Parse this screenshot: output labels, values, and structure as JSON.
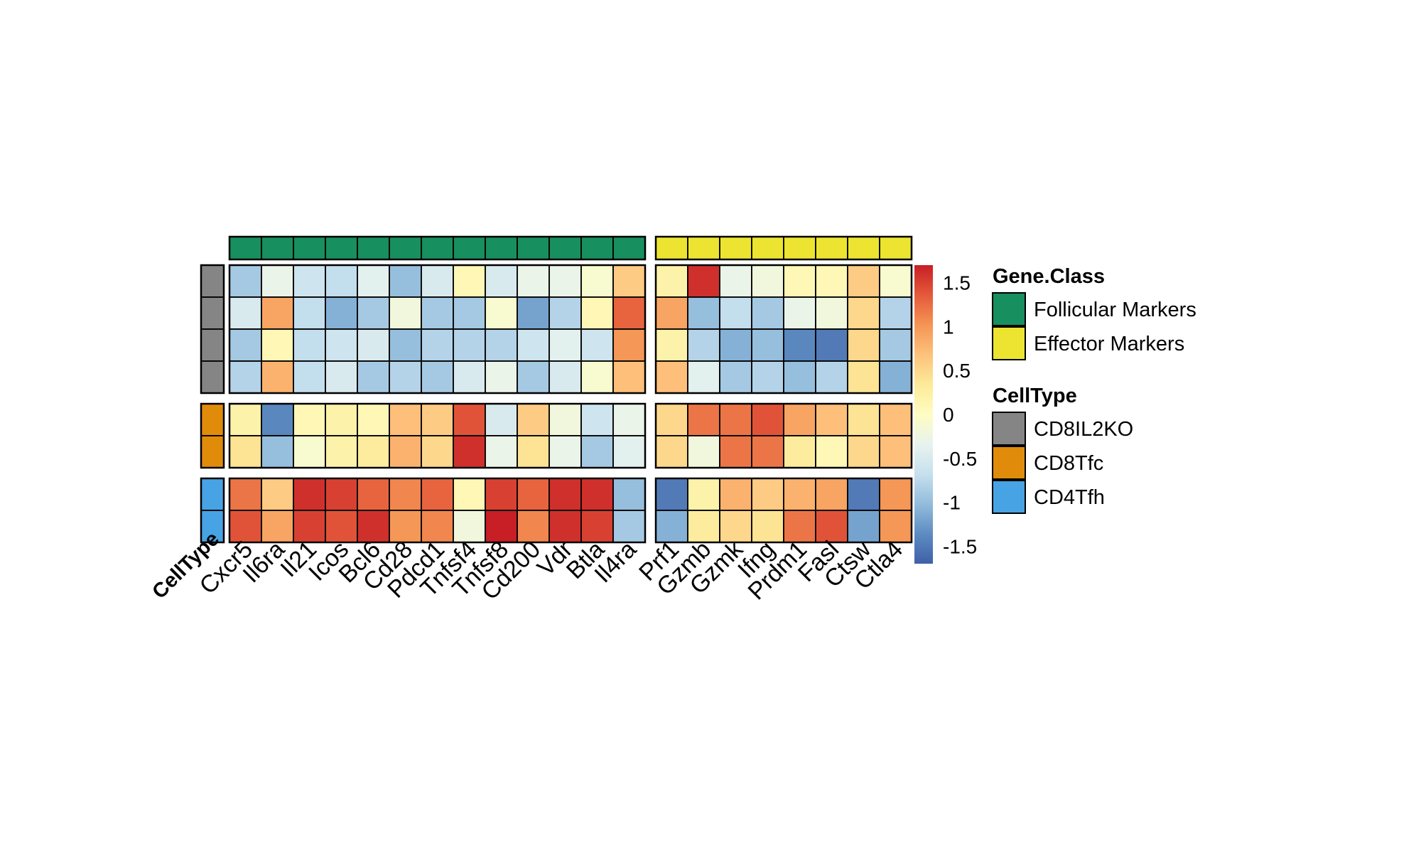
{
  "chart_data": {
    "type": "heatmap",
    "title": "",
    "xlabel": "",
    "ylabel": "",
    "columns": [
      "Cxcr5",
      "Il6ra",
      "Il21",
      "Icos",
      "Bcl6",
      "Cd28",
      "Pdcd1",
      "Tnfsf4",
      "Tnfsf8",
      "Cd200",
      "Vdr",
      "Btla",
      "Il4ra",
      "Prf1",
      "Gzmb",
      "Gzmk",
      "Ifng",
      "Prdm1",
      "Fasl",
      "Ctsw",
      "Ctla4"
    ],
    "column_annotation": {
      "name": "Gene.Class",
      "values": [
        "Follicular Markers",
        "Follicular Markers",
        "Follicular Markers",
        "Follicular Markers",
        "Follicular Markers",
        "Follicular Markers",
        "Follicular Markers",
        "Follicular Markers",
        "Follicular Markers",
        "Follicular Markers",
        "Follicular Markers",
        "Follicular Markers",
        "Follicular Markers",
        "Effector Markers",
        "Effector Markers",
        "Effector Markers",
        "Effector Markers",
        "Effector Markers",
        "Effector Markers",
        "Effector Markers",
        "Effector Markers"
      ]
    },
    "row_annotation": {
      "name": "CellType",
      "label": "CellType",
      "values": [
        "CD8IL2KO",
        "CD8IL2KO",
        "CD8IL2KO",
        "CD8IL2KO",
        "CD8Tfc",
        "CD8Tfc",
        "CD4Tfh",
        "CD4Tfh"
      ]
    },
    "values": [
      [
        -0.9,
        -0.3,
        -0.6,
        -0.7,
        -0.4,
        -1.0,
        -0.5,
        0.1,
        -0.5,
        -0.3,
        -0.3,
        -0.1,
        0.6,
        0.2,
        1.6,
        -0.3,
        -0.2,
        0.1,
        0.1,
        0.6,
        -0.1
      ],
      [
        -0.5,
        0.9,
        -0.7,
        -1.1,
        -0.9,
        -0.2,
        -0.9,
        -0.9,
        -0.1,
        -1.2,
        -0.8,
        0.1,
        1.3,
        0.9,
        -1.0,
        -0.7,
        -0.9,
        -0.3,
        -0.2,
        0.5,
        -0.8
      ],
      [
        -0.9,
        0.1,
        -0.7,
        -0.6,
        -0.5,
        -1.0,
        -0.8,
        -0.8,
        -0.8,
        -0.6,
        -0.4,
        -0.6,
        1.0,
        0.2,
        -0.8,
        -1.1,
        -1.0,
        -1.4,
        -1.5,
        0.5,
        -0.9
      ],
      [
        -0.8,
        0.8,
        -0.7,
        -0.5,
        -0.9,
        -0.8,
        -0.9,
        -0.5,
        -0.3,
        -0.9,
        -0.5,
        -0.1,
        0.7,
        0.7,
        -0.4,
        -0.9,
        -0.8,
        -1.0,
        -0.8,
        0.4,
        -1.1
      ],
      [
        0.2,
        -1.4,
        0.1,
        0.2,
        0.1,
        0.7,
        0.6,
        1.4,
        -0.5,
        0.6,
        -0.2,
        -0.6,
        -0.3,
        0.5,
        1.2,
        1.2,
        1.4,
        0.9,
        0.7,
        0.4,
        0.7
      ],
      [
        0.4,
        -1.0,
        -0.1,
        0.2,
        0.3,
        0.8,
        0.5,
        1.6,
        -0.3,
        0.4,
        -0.3,
        -0.9,
        -0.4,
        0.5,
        -0.2,
        1.2,
        1.2,
        0.3,
        0.1,
        0.5,
        0.7
      ],
      [
        1.2,
        0.6,
        1.6,
        1.5,
        1.3,
        1.1,
        1.3,
        0.1,
        1.5,
        1.3,
        1.6,
        1.6,
        -1.0,
        -1.5,
        0.2,
        0.8,
        0.6,
        0.8,
        0.9,
        -1.5,
        1.0
      ],
      [
        1.4,
        0.9,
        1.5,
        1.4,
        1.6,
        1.0,
        1.1,
        -0.2,
        1.7,
        1.1,
        1.6,
        1.5,
        -0.9,
        -1.1,
        0.3,
        0.5,
        0.4,
        1.2,
        1.4,
        -1.2,
        1.0
      ]
    ],
    "color_scale": {
      "min": -1.7,
      "max": 1.7,
      "ticks": [
        -1.5,
        -1,
        -0.5,
        0,
        0.5,
        1,
        1.5
      ],
      "tick_labels": [
        "-1.5",
        "-1",
        "-0.5",
        "0",
        "0.5",
        "1",
        "1.5"
      ],
      "colors": [
        "#3f60a8",
        "#5d8cc1",
        "#93bcdc",
        "#c6e0ee",
        "#e8f3ee",
        "#fefdc2",
        "#fdea99",
        "#fdc27c",
        "#f59455",
        "#e45a3a",
        "#c81e26"
      ]
    },
    "legend": {
      "placement": "right",
      "groups": [
        {
          "title": "Gene.Class",
          "items": [
            {
              "label": "Follicular Markers",
              "color": "#178f5f"
            },
            {
              "label": "Effector Markers",
              "color": "#ece430"
            }
          ]
        },
        {
          "title": "CellType",
          "items": [
            {
              "label": "CD8IL2KO",
              "color": "#858585"
            },
            {
              "label": "CD8Tfc",
              "color": "#e18b0b"
            },
            {
              "label": "CD4Tfh",
              "color": "#47a3e3"
            }
          ]
        }
      ]
    }
  }
}
